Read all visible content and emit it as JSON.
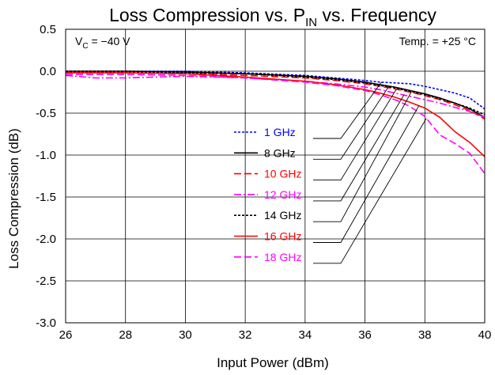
{
  "chart_data": {
    "type": "line",
    "title": {
      "main": "Loss Compression vs. P",
      "sub": "IN",
      "rest": " vs. Frequency"
    },
    "xlabel": "Input Power (dBm)",
    "ylabel": "Loss Compression (dB)",
    "xlim": [
      26,
      40
    ],
    "ylim": [
      -3.0,
      0.5
    ],
    "xticks": [
      "26",
      "28",
      "30",
      "32",
      "34",
      "36",
      "38",
      "40"
    ],
    "yticks": [
      "0.5",
      "0.0",
      "-0.5",
      "-1.0",
      "-1.5",
      "-2.0",
      "-2.5",
      "-3.0"
    ],
    "grid": true,
    "annotations": {
      "vc": {
        "main": "V",
        "sub": "C",
        "rest": " = −40 V"
      },
      "temp": "Temp. = +25 °C"
    },
    "legend_placement": "center, with leader lines to each curve",
    "series": [
      {
        "name": "1 GHz",
        "color": "#0000ff",
        "dash": "short-dash",
        "x": [
          26,
          28,
          30,
          32,
          34,
          35,
          36,
          36.5,
          37,
          37.5,
          38,
          38.5,
          39,
          39.5,
          40
        ],
        "y": [
          0.0,
          0.0,
          0.0,
          -0.02,
          -0.05,
          -0.08,
          -0.11,
          -0.13,
          -0.14,
          -0.15,
          -0.18,
          -0.22,
          -0.26,
          -0.32,
          -0.45
        ]
      },
      {
        "name": "8 GHz",
        "color": "#000000",
        "dash": "solid",
        "x": [
          26,
          28,
          30,
          32,
          34,
          35,
          36,
          36.5,
          37,
          37.5,
          38,
          38.5,
          39,
          39.5,
          40
        ],
        "y": [
          0.0,
          0.0,
          -0.01,
          -0.03,
          -0.06,
          -0.09,
          -0.13,
          -0.16,
          -0.19,
          -0.23,
          -0.27,
          -0.32,
          -0.38,
          -0.45,
          -0.55
        ]
      },
      {
        "name": "10 GHz",
        "color": "#ff0000",
        "dash": "long-dash",
        "x": [
          26,
          28,
          30,
          32,
          34,
          35,
          36,
          36.5,
          37,
          37.5,
          38,
          38.5,
          39,
          39.5,
          40
        ],
        "y": [
          -0.02,
          -0.02,
          -0.03,
          -0.05,
          -0.08,
          -0.11,
          -0.15,
          -0.18,
          -0.21,
          -0.25,
          -0.29,
          -0.34,
          -0.4,
          -0.47,
          -0.57
        ]
      },
      {
        "name": "12 GHz",
        "color": "#ff00ff",
        "dash": "dash-dot",
        "x": [
          26,
          27,
          28,
          29,
          30,
          32,
          34,
          35,
          36,
          36.5,
          37,
          37.5,
          38,
          38.5,
          39,
          39.5,
          40
        ],
        "y": [
          -0.05,
          -0.08,
          -0.08,
          -0.07,
          -0.06,
          -0.08,
          -0.12,
          -0.15,
          -0.19,
          -0.22,
          -0.26,
          -0.3,
          -0.34,
          -0.38,
          -0.43,
          -0.48,
          -0.55
        ]
      },
      {
        "name": "14 GHz",
        "color": "#000000",
        "dash": "short-dash",
        "x": [
          26,
          28,
          30,
          32,
          34,
          35,
          36,
          36.5,
          37,
          37.5,
          38,
          38.5,
          39,
          39.5,
          40
        ],
        "y": [
          -0.01,
          -0.01,
          -0.02,
          -0.03,
          -0.07,
          -0.1,
          -0.14,
          -0.17,
          -0.2,
          -0.24,
          -0.28,
          -0.33,
          -0.38,
          -0.44,
          -0.52
        ]
      },
      {
        "name": "16 GHz",
        "color": "#ff0000",
        "dash": "solid",
        "x": [
          26,
          28,
          30,
          32,
          34,
          35,
          36,
          36.5,
          37,
          37.5,
          38,
          38.5,
          39,
          39.5,
          40
        ],
        "y": [
          -0.02,
          -0.02,
          -0.03,
          -0.07,
          -0.12,
          -0.16,
          -0.22,
          -0.26,
          -0.31,
          -0.37,
          -0.44,
          -0.55,
          -0.72,
          -0.85,
          -1.02
        ]
      },
      {
        "name": "18 GHz",
        "color": "#ff00ff",
        "dash": "long-dash",
        "x": [
          26,
          28,
          30,
          32,
          34,
          35,
          36,
          36.5,
          37,
          37.5,
          38,
          38.5,
          39,
          39.5,
          40
        ],
        "y": [
          -0.04,
          -0.04,
          -0.05,
          -0.08,
          -0.13,
          -0.17,
          -0.23,
          -0.28,
          -0.34,
          -0.42,
          -0.54,
          -0.76,
          -0.86,
          -0.98,
          -1.22
        ]
      }
    ]
  }
}
